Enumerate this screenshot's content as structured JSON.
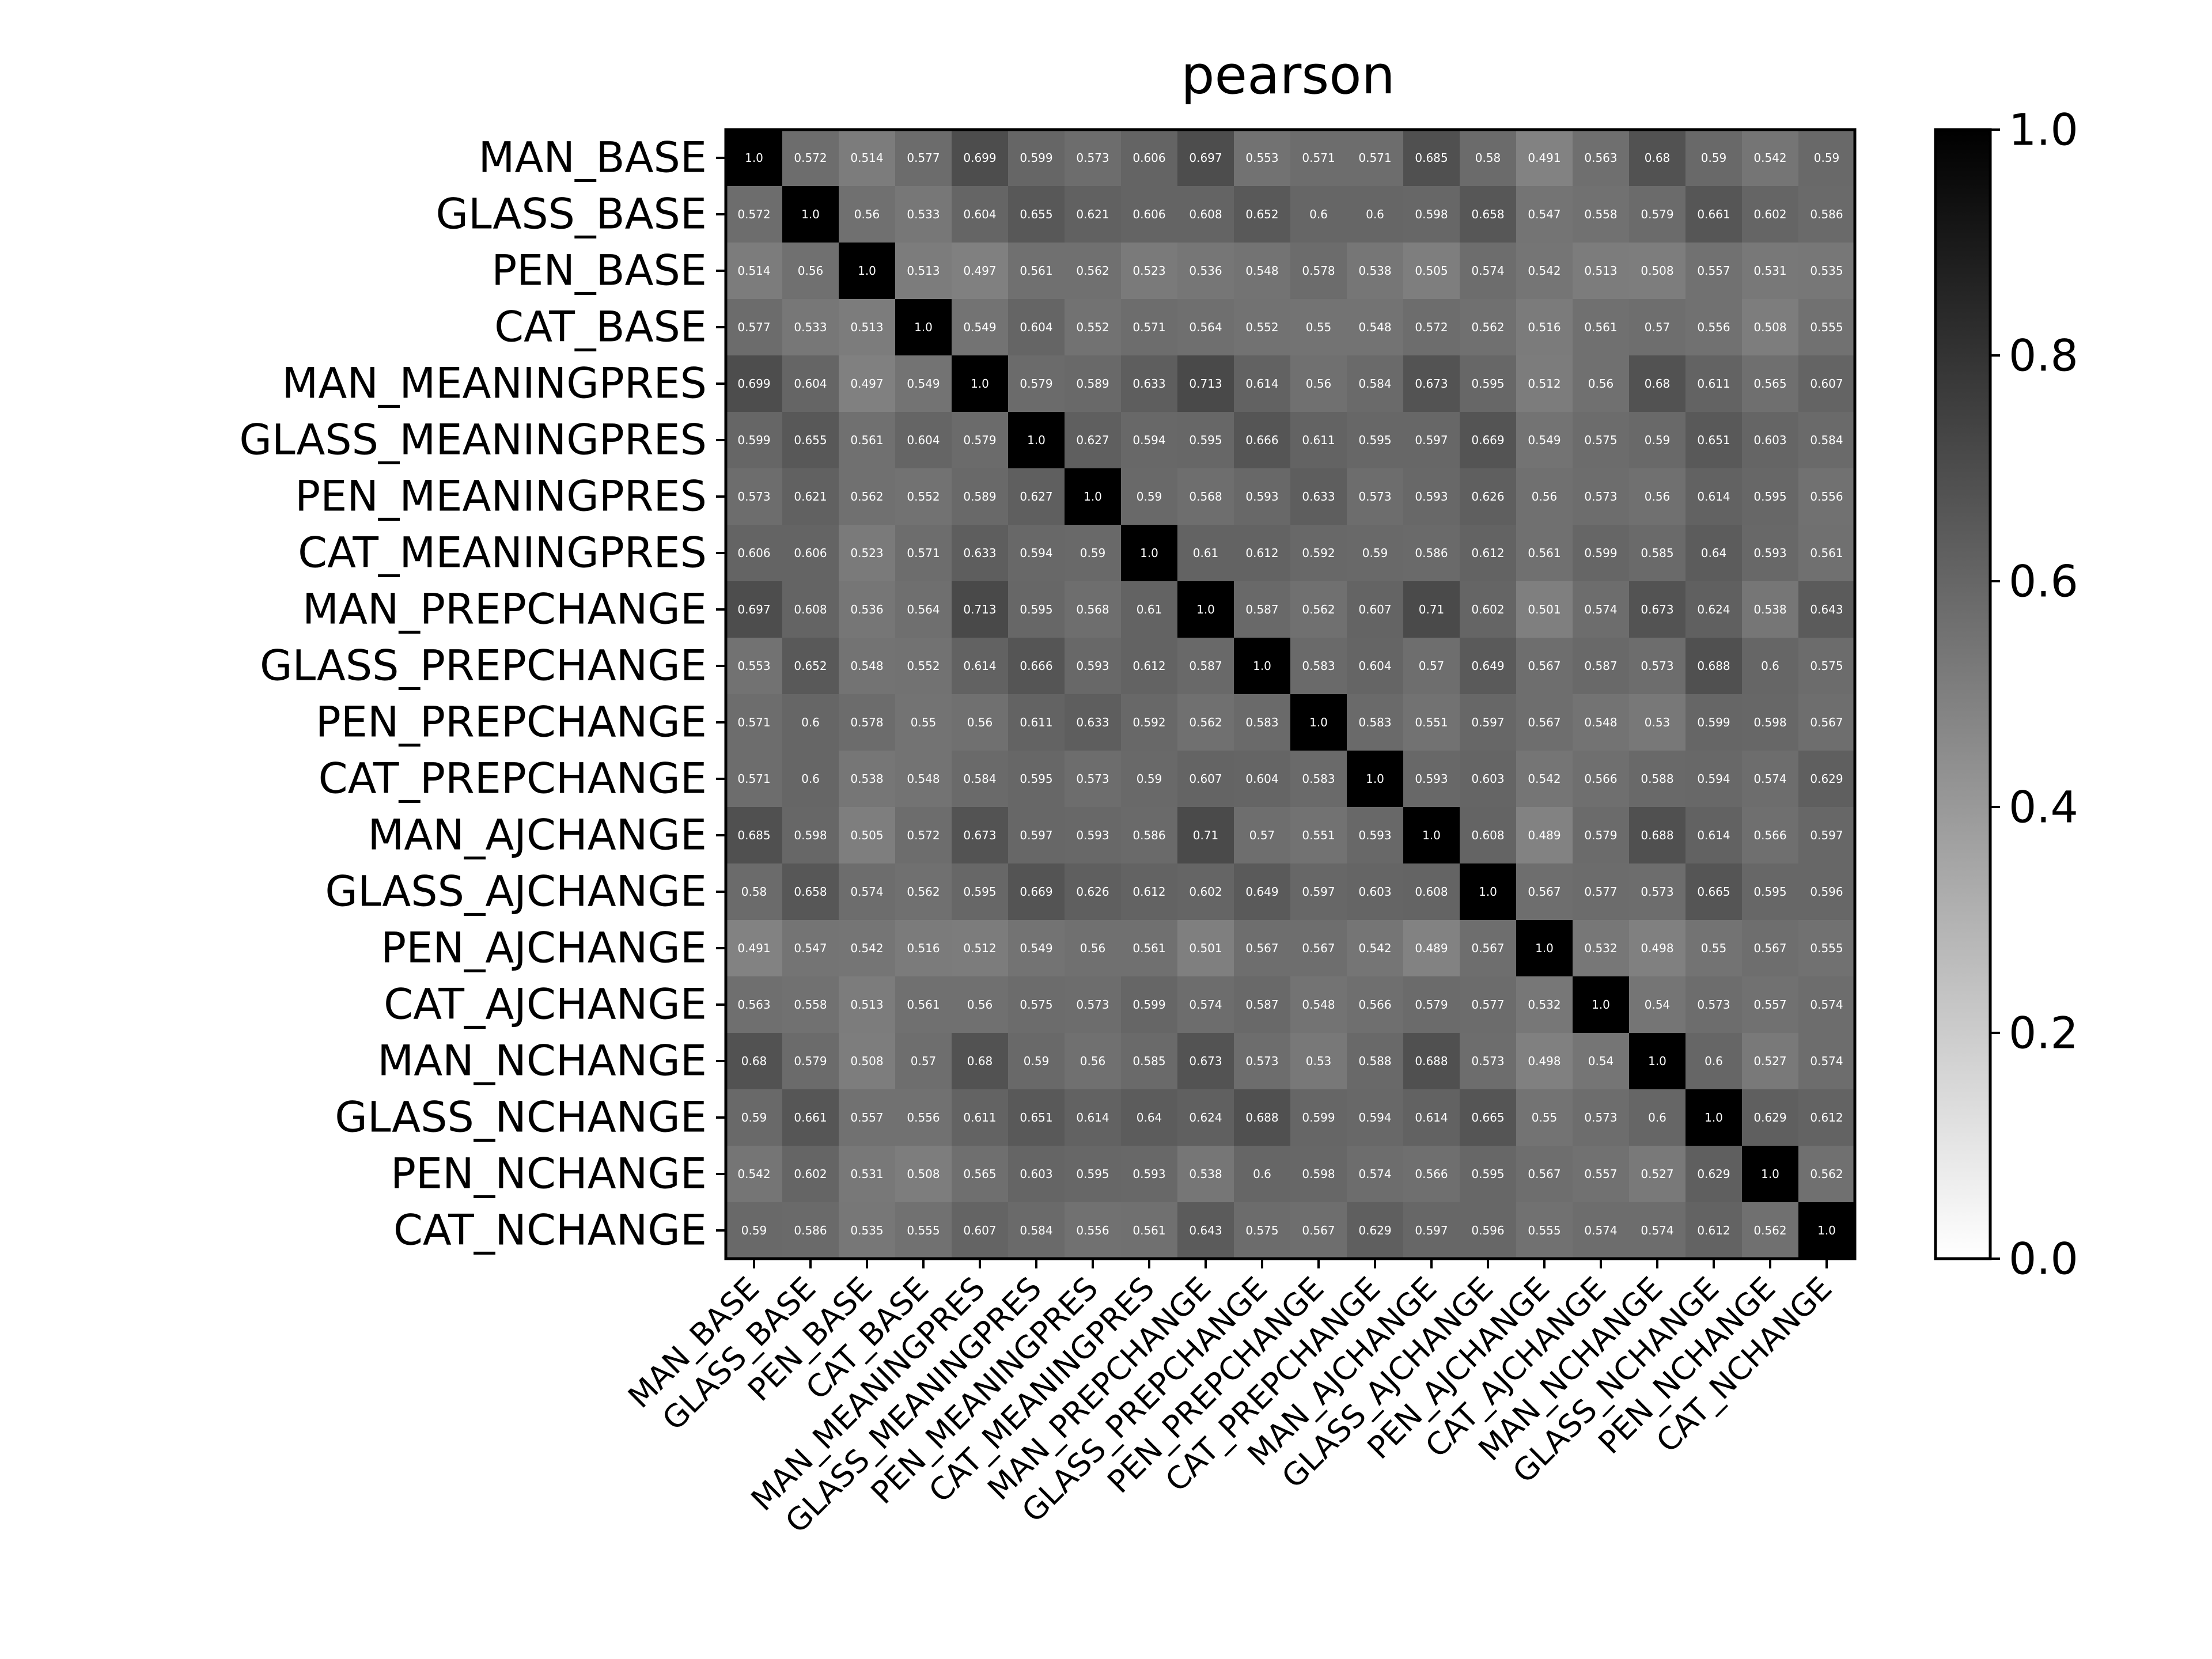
{
  "chart_data": {
    "type": "heatmap",
    "title": "pearson",
    "xlabel": "",
    "ylabel": "",
    "labels": [
      "MAN_BASE",
      "GLASS_BASE",
      "PEN_BASE",
      "CAT_BASE",
      "MAN_MEANINGPRES",
      "GLASS_MEANINGPRES",
      "PEN_MEANINGPRES",
      "CAT_MEANINGPRES",
      "MAN_PREPCHANGE",
      "GLASS_PREPCHANGE",
      "PEN_PREPCHANGE",
      "CAT_PREPCHANGE",
      "MAN_AJCHANGE",
      "GLASS_AJCHANGE",
      "PEN_AJCHANGE",
      "CAT_AJCHANGE",
      "MAN_NCHANGE",
      "GLASS_NCHANGE",
      "PEN_NCHANGE",
      "CAT_NCHANGE"
    ],
    "matrix": [
      [
        "1.0",
        "0.572",
        "0.514",
        "0.577",
        "0.699",
        "0.599",
        "0.573",
        "0.606",
        "0.697",
        "0.553",
        "0.571",
        "0.571",
        "0.685",
        "0.58",
        "0.491",
        "0.563",
        "0.68",
        "0.59",
        "0.542",
        "0.59"
      ],
      [
        "0.572",
        "1.0",
        "0.56",
        "0.533",
        "0.604",
        "0.655",
        "0.621",
        "0.606",
        "0.608",
        "0.652",
        "0.6",
        "0.6",
        "0.598",
        "0.658",
        "0.547",
        "0.558",
        "0.579",
        "0.661",
        "0.602",
        "0.586"
      ],
      [
        "0.514",
        "0.56",
        "1.0",
        "0.513",
        "0.497",
        "0.561",
        "0.562",
        "0.523",
        "0.536",
        "0.548",
        "0.578",
        "0.538",
        "0.505",
        "0.574",
        "0.542",
        "0.513",
        "0.508",
        "0.557",
        "0.531",
        "0.535"
      ],
      [
        "0.577",
        "0.533",
        "0.513",
        "1.0",
        "0.549",
        "0.604",
        "0.552",
        "0.571",
        "0.564",
        "0.552",
        "0.55",
        "0.548",
        "0.572",
        "0.562",
        "0.516",
        "0.561",
        "0.57",
        "0.556",
        "0.508",
        "0.555"
      ],
      [
        "0.699",
        "0.604",
        "0.497",
        "0.549",
        "1.0",
        "0.579",
        "0.589",
        "0.633",
        "0.713",
        "0.614",
        "0.56",
        "0.584",
        "0.673",
        "0.595",
        "0.512",
        "0.56",
        "0.68",
        "0.611",
        "0.565",
        "0.607"
      ],
      [
        "0.599",
        "0.655",
        "0.561",
        "0.604",
        "0.579",
        "1.0",
        "0.627",
        "0.594",
        "0.595",
        "0.666",
        "0.611",
        "0.595",
        "0.597",
        "0.669",
        "0.549",
        "0.575",
        "0.59",
        "0.651",
        "0.603",
        "0.584"
      ],
      [
        "0.573",
        "0.621",
        "0.562",
        "0.552",
        "0.589",
        "0.627",
        "1.0",
        "0.59",
        "0.568",
        "0.593",
        "0.633",
        "0.573",
        "0.593",
        "0.626",
        "0.56",
        "0.573",
        "0.56",
        "0.614",
        "0.595",
        "0.556"
      ],
      [
        "0.606",
        "0.606",
        "0.523",
        "0.571",
        "0.633",
        "0.594",
        "0.59",
        "1.0",
        "0.61",
        "0.612",
        "0.592",
        "0.59",
        "0.586",
        "0.612",
        "0.561",
        "0.599",
        "0.585",
        "0.64",
        "0.593",
        "0.561"
      ],
      [
        "0.697",
        "0.608",
        "0.536",
        "0.564",
        "0.713",
        "0.595",
        "0.568",
        "0.61",
        "1.0",
        "0.587",
        "0.562",
        "0.607",
        "0.71",
        "0.602",
        "0.501",
        "0.574",
        "0.673",
        "0.624",
        "0.538",
        "0.643"
      ],
      [
        "0.553",
        "0.652",
        "0.548",
        "0.552",
        "0.614",
        "0.666",
        "0.593",
        "0.612",
        "0.587",
        "1.0",
        "0.583",
        "0.604",
        "0.57",
        "0.649",
        "0.567",
        "0.587",
        "0.573",
        "0.688",
        "0.6",
        "0.575"
      ],
      [
        "0.571",
        "0.6",
        "0.578",
        "0.55",
        "0.56",
        "0.611",
        "0.633",
        "0.592",
        "0.562",
        "0.583",
        "1.0",
        "0.583",
        "0.551",
        "0.597",
        "0.567",
        "0.548",
        "0.53",
        "0.599",
        "0.598",
        "0.567"
      ],
      [
        "0.571",
        "0.6",
        "0.538",
        "0.548",
        "0.584",
        "0.595",
        "0.573",
        "0.59",
        "0.607",
        "0.604",
        "0.583",
        "1.0",
        "0.593",
        "0.603",
        "0.542",
        "0.566",
        "0.588",
        "0.594",
        "0.574",
        "0.629"
      ],
      [
        "0.685",
        "0.598",
        "0.505",
        "0.572",
        "0.673",
        "0.597",
        "0.593",
        "0.586",
        "0.71",
        "0.57",
        "0.551",
        "0.593",
        "1.0",
        "0.608",
        "0.489",
        "0.579",
        "0.688",
        "0.614",
        "0.566",
        "0.597"
      ],
      [
        "0.58",
        "0.658",
        "0.574",
        "0.562",
        "0.595",
        "0.669",
        "0.626",
        "0.612",
        "0.602",
        "0.649",
        "0.597",
        "0.603",
        "0.608",
        "1.0",
        "0.567",
        "0.577",
        "0.573",
        "0.665",
        "0.595",
        "0.596"
      ],
      [
        "0.491",
        "0.547",
        "0.542",
        "0.516",
        "0.512",
        "0.549",
        "0.56",
        "0.561",
        "0.501",
        "0.567",
        "0.567",
        "0.542",
        "0.489",
        "0.567",
        "1.0",
        "0.532",
        "0.498",
        "0.55",
        "0.567",
        "0.555"
      ],
      [
        "0.563",
        "0.558",
        "0.513",
        "0.561",
        "0.56",
        "0.575",
        "0.573",
        "0.599",
        "0.574",
        "0.587",
        "0.548",
        "0.566",
        "0.579",
        "0.577",
        "0.532",
        "1.0",
        "0.54",
        "0.573",
        "0.557",
        "0.574"
      ],
      [
        "0.68",
        "0.579",
        "0.508",
        "0.57",
        "0.68",
        "0.59",
        "0.56",
        "0.585",
        "0.673",
        "0.573",
        "0.53",
        "0.588",
        "0.688",
        "0.573",
        "0.498",
        "0.54",
        "1.0",
        "0.6",
        "0.527",
        "0.574"
      ],
      [
        "0.59",
        "0.661",
        "0.557",
        "0.556",
        "0.611",
        "0.651",
        "0.614",
        "0.64",
        "0.624",
        "0.688",
        "0.599",
        "0.594",
        "0.614",
        "0.665",
        "0.55",
        "0.573",
        "0.6",
        "1.0",
        "0.629",
        "0.612"
      ],
      [
        "0.542",
        "0.602",
        "0.531",
        "0.508",
        "0.565",
        "0.603",
        "0.595",
        "0.593",
        "0.538",
        "0.6",
        "0.598",
        "0.574",
        "0.566",
        "0.595",
        "0.567",
        "0.557",
        "0.527",
        "0.629",
        "1.0",
        "0.562"
      ],
      [
        "0.59",
        "0.586",
        "0.535",
        "0.555",
        "0.607",
        "0.584",
        "0.556",
        "0.561",
        "0.643",
        "0.575",
        "0.567",
        "0.629",
        "0.597",
        "0.596",
        "0.555",
        "0.574",
        "0.574",
        "0.612",
        "0.562",
        "1.0"
      ]
    ],
    "colorbar": {
      "colormap": "Greys",
      "vmin": 0.0,
      "vmax": 1.0,
      "ticks": [
        "0.0",
        "0.2",
        "0.4",
        "0.6",
        "0.8",
        "1.0"
      ]
    },
    "grid": false,
    "legend": "none"
  }
}
